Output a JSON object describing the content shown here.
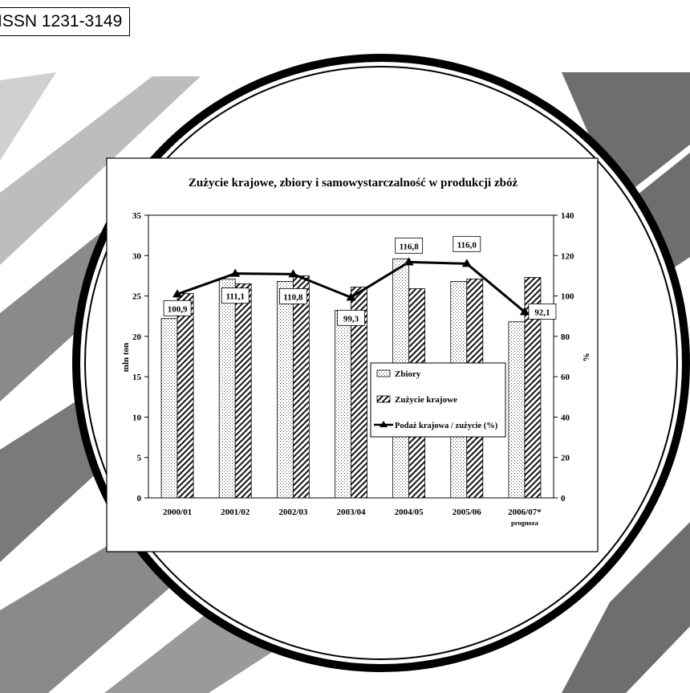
{
  "issn": "ISSN 1231-3149",
  "chart_data": {
    "type": "bar",
    "title": "Zużycie krajowe, zbiory i samowystarczalność w produkcji zbóż",
    "ylabel": "mln ton",
    "y2label": "%",
    "ylim": [
      0,
      35
    ],
    "yticks": [
      0,
      5,
      10,
      15,
      20,
      25,
      30,
      35
    ],
    "y2lim": [
      0,
      140
    ],
    "y2ticks": [
      0,
      20,
      40,
      60,
      80,
      100,
      120,
      140
    ],
    "categories": [
      "2000/01",
      "2001/02",
      "2002/03",
      "2003/04",
      "2004/05",
      "2005/06",
      "2006/07*"
    ],
    "category_notes": [
      "",
      "",
      "",
      "",
      "",
      "",
      "prognoza"
    ],
    "series": [
      {
        "name": "Zbiory",
        "kind": "bar",
        "pattern": "dots",
        "values": [
          22.2,
          27.1,
          26.8,
          23.2,
          29.6,
          26.8,
          21.8
        ]
      },
      {
        "name": "Zużycie krajowe",
        "kind": "bar",
        "pattern": "hatch",
        "values": [
          25.3,
          26.5,
          27.5,
          26.1,
          25.9,
          27.1,
          27.3
        ]
      },
      {
        "name": "Podaż krajowa / zużycie (%)",
        "kind": "line",
        "axis": "right",
        "values": [
          100.9,
          111.1,
          110.8,
          99.3,
          116.8,
          116.0,
          92.1
        ],
        "labels": [
          "100,9",
          "111,1",
          "110,8",
          "99,3",
          "116,8",
          "116,0",
          "92,1"
        ]
      }
    ],
    "legend_position": "lower-right",
    "grid": false
  }
}
